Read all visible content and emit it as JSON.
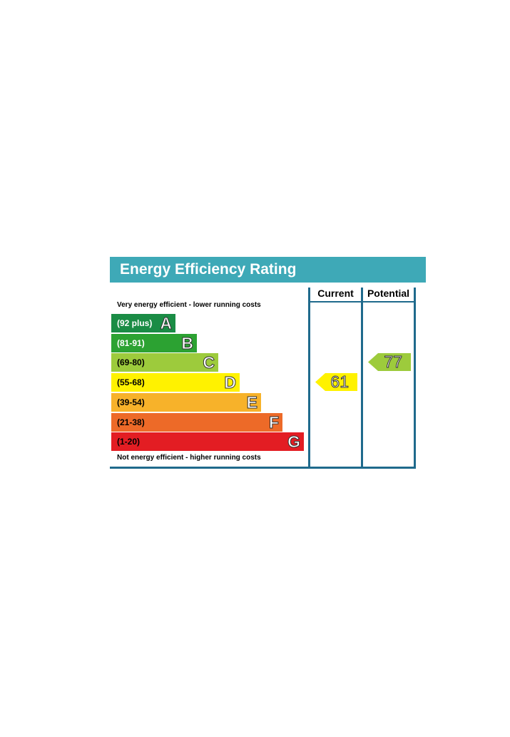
{
  "title": "Energy Efficiency Rating",
  "columns": {
    "current": "Current",
    "potential": "Potential"
  },
  "notes": {
    "top": "Very energy efficient - lower running costs",
    "bottom": "Not energy efficient - higher running costs"
  },
  "chart_data": {
    "type": "bar",
    "bands": [
      {
        "range": "(92 plus)",
        "letter": "A",
        "color": "#1a8c45",
        "text_color": "#ffffff"
      },
      {
        "range": "(81-91)",
        "letter": "B",
        "color": "#2ca232",
        "text_color": "#ffffff"
      },
      {
        "range": "(69-80)",
        "letter": "C",
        "color": "#9dcb3c",
        "text_color": "#000000"
      },
      {
        "range": "(55-68)",
        "letter": "D",
        "color": "#fff200",
        "text_color": "#000000"
      },
      {
        "range": "(39-54)",
        "letter": "E",
        "color": "#f7b22a",
        "text_color": "#000000"
      },
      {
        "range": "(21-38)",
        "letter": "F",
        "color": "#ed6a28",
        "text_color": "#000000"
      },
      {
        "range": "(1-20)",
        "letter": "G",
        "color": "#e31d23",
        "text_color": "#000000"
      }
    ],
    "current": {
      "value": "61",
      "band": "D",
      "color": "#fff200"
    },
    "potential": {
      "value": "77",
      "band": "C",
      "color": "#9dcb3c"
    }
  }
}
